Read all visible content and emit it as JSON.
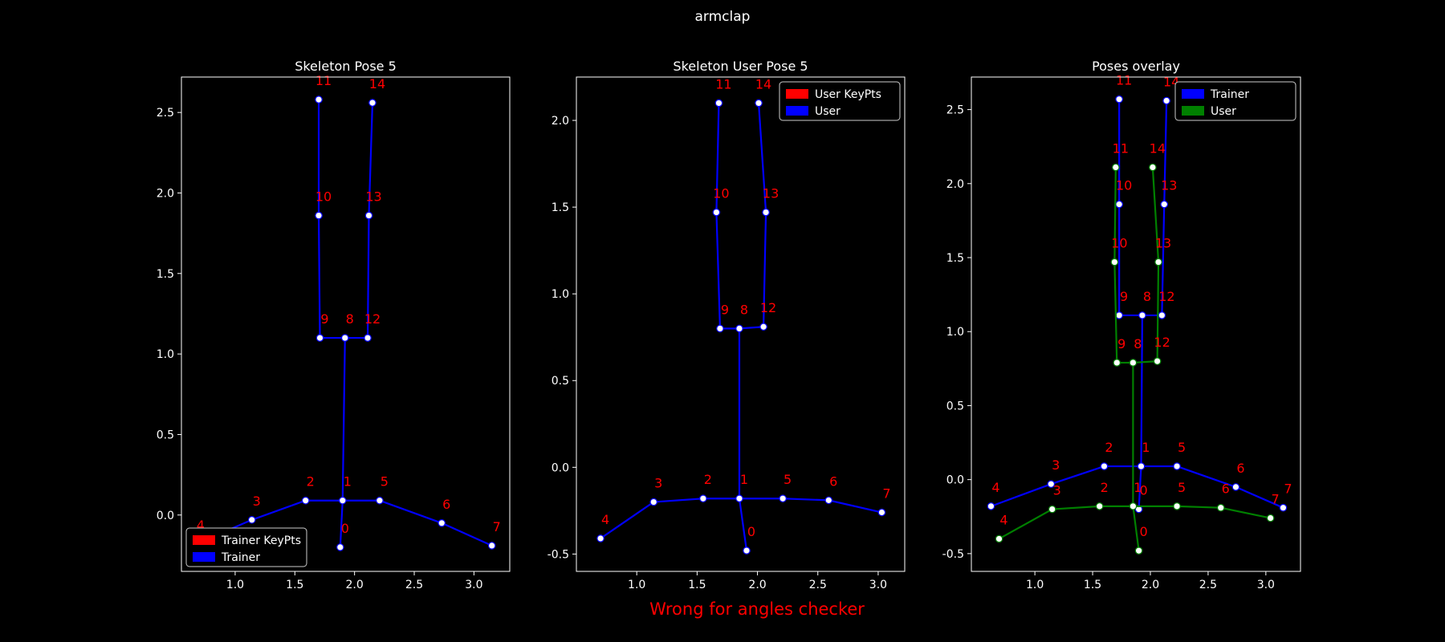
{
  "figure": {
    "suptitle": "armclap",
    "footer": "Wrong for angles checker"
  },
  "colors": {
    "background": "#000000",
    "axis": "#ffffff",
    "trainer": "#0000ff",
    "user": "#008000",
    "keypoint_label": "#ff0000",
    "joint_fill": "#ffffff"
  },
  "chart_data": [
    {
      "type": "scatter",
      "title": "Skeleton Pose 5",
      "xlim": [
        0.55,
        3.3
      ],
      "ylim": [
        2.72,
        -0.35
      ],
      "xticks": [
        "1.0",
        "1.5",
        "2.0",
        "2.5",
        "3.0"
      ],
      "yticks": [
        "0.0",
        "0.5",
        "1.0",
        "1.5",
        "2.0",
        "2.5"
      ],
      "legend_position": "lower-left",
      "legend": [
        {
          "label": "Trainer KeyPts",
          "color": "#ff0000"
        },
        {
          "label": "Trainer",
          "color": "#0000ff"
        }
      ],
      "series": [
        {
          "keypoints": [
            {
              "id": "0",
              "x": 1.88,
              "y": -0.2
            },
            {
              "id": "1",
              "x": 1.9,
              "y": 0.09
            },
            {
              "id": "2",
              "x": 1.59,
              "y": 0.09
            },
            {
              "id": "3",
              "x": 1.14,
              "y": -0.03
            },
            {
              "id": "4",
              "x": 0.67,
              "y": -0.18
            },
            {
              "id": "5",
              "x": 2.21,
              "y": 0.09
            },
            {
              "id": "6",
              "x": 2.73,
              "y": -0.05
            },
            {
              "id": "7",
              "x": 3.15,
              "y": -0.19
            },
            {
              "id": "8",
              "x": 1.92,
              "y": 1.1
            },
            {
              "id": "9",
              "x": 1.71,
              "y": 1.1
            },
            {
              "id": "10",
              "x": 1.7,
              "y": 1.86
            },
            {
              "id": "11",
              "x": 1.7,
              "y": 2.58
            },
            {
              "id": "12",
              "x": 2.11,
              "y": 1.1
            },
            {
              "id": "13",
              "x": 2.12,
              "y": 1.86
            },
            {
              "id": "14",
              "x": 2.15,
              "y": 2.56
            }
          ]
        }
      ]
    },
    {
      "type": "scatter",
      "title": "Skeleton User Pose 5",
      "xlim": [
        0.5,
        3.22
      ],
      "ylim": [
        2.25,
        -0.6
      ],
      "xticks": [
        "1.0",
        "1.5",
        "2.0",
        "2.5",
        "3.0"
      ],
      "yticks": [
        "-0.5",
        "0.0",
        "0.5",
        "1.0",
        "1.5",
        "2.0"
      ],
      "legend_position": "upper-right",
      "legend": [
        {
          "label": "User KeyPts",
          "color": "#ff0000"
        },
        {
          "label": "User",
          "color": "#0000ff"
        }
      ],
      "series": [
        {
          "keypoints": [
            {
              "id": "0",
              "x": 1.91,
              "y": -0.48
            },
            {
              "id": "1",
              "x": 1.85,
              "y": -0.18
            },
            {
              "id": "2",
              "x": 1.55,
              "y": -0.18
            },
            {
              "id": "3",
              "x": 1.14,
              "y": -0.2
            },
            {
              "id": "4",
              "x": 0.7,
              "y": -0.41
            },
            {
              "id": "5",
              "x": 2.21,
              "y": -0.18
            },
            {
              "id": "6",
              "x": 2.59,
              "y": -0.19
            },
            {
              "id": "7",
              "x": 3.03,
              "y": -0.26
            },
            {
              "id": "8",
              "x": 1.85,
              "y": 0.8
            },
            {
              "id": "9",
              "x": 1.69,
              "y": 0.8
            },
            {
              "id": "10",
              "x": 1.66,
              "y": 1.47
            },
            {
              "id": "11",
              "x": 1.68,
              "y": 2.1
            },
            {
              "id": "12",
              "x": 2.05,
              "y": 0.81
            },
            {
              "id": "13",
              "x": 2.07,
              "y": 1.47
            },
            {
              "id": "14",
              "x": 2.01,
              "y": 2.1
            }
          ]
        }
      ]
    },
    {
      "type": "scatter",
      "title": "Poses overlay",
      "xlim": [
        0.45,
        3.3
      ],
      "ylim": [
        2.72,
        -0.62
      ],
      "xticks": [
        "1.0",
        "1.5",
        "2.0",
        "2.5",
        "3.0"
      ],
      "yticks": [
        "-0.5",
        "0.0",
        "0.5",
        "1.0",
        "1.5",
        "2.0",
        "2.5"
      ],
      "legend_position": "upper-right",
      "legend": [
        {
          "label": "Trainer",
          "color": "#0000ff"
        },
        {
          "label": "User",
          "color": "#008000"
        }
      ],
      "series": [
        {
          "keypoints": [
            {
              "id": "0",
              "x": 1.9,
              "y": -0.2
            },
            {
              "id": "1",
              "x": 1.92,
              "y": 0.09
            },
            {
              "id": "2",
              "x": 1.6,
              "y": 0.09
            },
            {
              "id": "3",
              "x": 1.14,
              "y": -0.03
            },
            {
              "id": "4",
              "x": 0.62,
              "y": -0.18
            },
            {
              "id": "5",
              "x": 2.23,
              "y": 0.09
            },
            {
              "id": "6",
              "x": 2.74,
              "y": -0.05
            },
            {
              "id": "7",
              "x": 3.15,
              "y": -0.19
            },
            {
              "id": "8",
              "x": 1.93,
              "y": 1.11
            },
            {
              "id": "9",
              "x": 1.73,
              "y": 1.11
            },
            {
              "id": "10",
              "x": 1.73,
              "y": 1.86
            },
            {
              "id": "11",
              "x": 1.73,
              "y": 2.57
            },
            {
              "id": "12",
              "x": 2.1,
              "y": 1.11
            },
            {
              "id": "13",
              "x": 2.12,
              "y": 1.86
            },
            {
              "id": "14",
              "x": 2.14,
              "y": 2.56
            }
          ]
        },
        {
          "keypoints": [
            {
              "id": "0",
              "x": 1.9,
              "y": -0.48
            },
            {
              "id": "1",
              "x": 1.85,
              "y": -0.18
            },
            {
              "id": "2",
              "x": 1.56,
              "y": -0.18
            },
            {
              "id": "3",
              "x": 1.15,
              "y": -0.2
            },
            {
              "id": "4",
              "x": 0.69,
              "y": -0.4
            },
            {
              "id": "5",
              "x": 2.23,
              "y": -0.18
            },
            {
              "id": "6",
              "x": 2.61,
              "y": -0.19
            },
            {
              "id": "7",
              "x": 3.04,
              "y": -0.26
            },
            {
              "id": "8",
              "x": 1.85,
              "y": 0.79
            },
            {
              "id": "9",
              "x": 1.71,
              "y": 0.79
            },
            {
              "id": "10",
              "x": 1.69,
              "y": 1.47
            },
            {
              "id": "11",
              "x": 1.7,
              "y": 2.11
            },
            {
              "id": "12",
              "x": 2.06,
              "y": 0.8
            },
            {
              "id": "13",
              "x": 2.07,
              "y": 1.47
            },
            {
              "id": "14",
              "x": 2.02,
              "y": 2.11
            }
          ]
        }
      ]
    }
  ]
}
